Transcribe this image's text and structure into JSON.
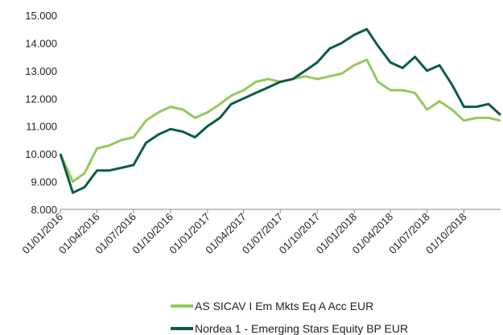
{
  "chart_data": {
    "type": "line",
    "x": [
      "2016-01-01",
      "2016-02-01",
      "2016-03-01",
      "2016-04-01",
      "2016-05-01",
      "2016-06-01",
      "2016-07-01",
      "2016-08-01",
      "2016-09-01",
      "2016-10-01",
      "2016-11-01",
      "2016-12-01",
      "2017-01-01",
      "2017-02-01",
      "2017-03-01",
      "2017-04-01",
      "2017-05-01",
      "2017-06-01",
      "2017-07-01",
      "2017-08-01",
      "2017-09-01",
      "2017-10-01",
      "2017-11-01",
      "2017-12-01",
      "2018-01-01",
      "2018-02-01",
      "2018-03-01",
      "2018-04-01",
      "2018-05-01",
      "2018-06-01",
      "2018-07-01",
      "2018-08-01",
      "2018-09-01",
      "2018-10-01",
      "2018-11-01",
      "2018-12-01",
      "2018-12-31"
    ],
    "series": [
      {
        "name": "AS SICAV I Em Mkts Eq A Acc EUR",
        "color": "#95c95c",
        "values": [
          10000,
          9000,
          9300,
          10200,
          10300,
          10500,
          10600,
          11200,
          11500,
          11700,
          11600,
          11300,
          11500,
          11800,
          12100,
          12300,
          12600,
          12700,
          12600,
          12700,
          12800,
          12700,
          12800,
          12900,
          13200,
          13400,
          12600,
          12300,
          12300,
          12200,
          11600,
          11900,
          11600,
          11200,
          11300,
          11300,
          11200
        ]
      },
      {
        "name": "Nordea 1 - Emerging Stars Equity BP EUR",
        "color": "#0b5c47",
        "values": [
          10000,
          8600,
          8800,
          9400,
          9400,
          9500,
          9600,
          10400,
          10700,
          10900,
          10800,
          10600,
          11000,
          11300,
          11800,
          12000,
          12200,
          12400,
          12600,
          12700,
          13000,
          13300,
          13800,
          14000,
          14300,
          14500,
          13900,
          13300,
          13100,
          13500,
          13000,
          13200,
          12500,
          11700,
          11700,
          11800,
          11400
        ]
      }
    ],
    "xlim": [
      "2016-01-01",
      "2018-12-31"
    ],
    "xticks": [
      {
        "value": "2016-01-01",
        "label": "01/01/2016"
      },
      {
        "value": "2016-04-01",
        "label": "01/04/2016"
      },
      {
        "value": "2016-07-01",
        "label": "01/07/2016"
      },
      {
        "value": "2016-10-01",
        "label": "01/10/2016"
      },
      {
        "value": "2017-01-01",
        "label": "01/01/2017"
      },
      {
        "value": "2017-04-01",
        "label": "01/04/2017"
      },
      {
        "value": "2017-07-01",
        "label": "01/07/2017"
      },
      {
        "value": "2017-10-01",
        "label": "01/10/2017"
      },
      {
        "value": "2018-01-01",
        "label": "01/01/2018"
      },
      {
        "value": "2018-04-01",
        "label": "01/04/2018"
      },
      {
        "value": "2018-07-01",
        "label": "01/07/2018"
      },
      {
        "value": "2018-10-01",
        "label": "01/10/2018"
      }
    ],
    "ylim": [
      8000,
      15000
    ],
    "yticks": [
      {
        "value": 8000,
        "label": "8.000"
      },
      {
        "value": 9000,
        "label": "9.000"
      },
      {
        "value": 10000,
        "label": "10.000"
      },
      {
        "value": 11000,
        "label": "11.000"
      },
      {
        "value": 12000,
        "label": "12.000"
      },
      {
        "value": 13000,
        "label": "13.000"
      },
      {
        "value": 14000,
        "label": "14.000"
      },
      {
        "value": 15000,
        "label": "15.000"
      }
    ],
    "grid": false,
    "legend": "bottom"
  }
}
